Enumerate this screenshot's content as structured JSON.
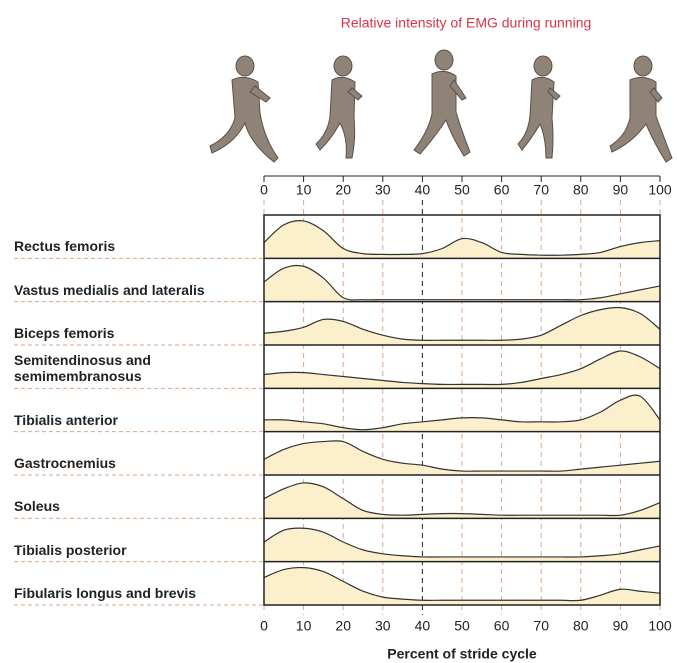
{
  "chart_data": {
    "type": "area",
    "title": "Relative intensity of EMG during running",
    "xlabel": "Percent of stride cycle",
    "x": [
      0,
      5,
      10,
      15,
      20,
      25,
      30,
      35,
      40,
      45,
      50,
      55,
      60,
      65,
      70,
      75,
      80,
      85,
      90,
      95,
      100
    ],
    "xlim": [
      0,
      100
    ],
    "xticks": [
      0,
      10,
      20,
      30,
      40,
      50,
      60,
      70,
      80,
      90,
      100
    ],
    "ylim": [
      0,
      1
    ],
    "highlight_tick": 40,
    "fill": "#fcefcc",
    "line_color": "#333333",
    "grid_color": "#d9a98a",
    "series": [
      {
        "name": "Rectus femoris",
        "values": [
          0.4,
          0.85,
          0.95,
          0.7,
          0.25,
          0.12,
          0.1,
          0.1,
          0.12,
          0.25,
          0.5,
          0.4,
          0.15,
          0.1,
          0.08,
          0.08,
          0.1,
          0.15,
          0.3,
          0.4,
          0.45
        ]
      },
      {
        "name": "Vastus medialis and lateralis",
        "values": [
          0.5,
          0.85,
          0.9,
          0.6,
          0.1,
          0.05,
          0.05,
          0.05,
          0.05,
          0.05,
          0.05,
          0.05,
          0.05,
          0.05,
          0.05,
          0.05,
          0.05,
          0.1,
          0.2,
          0.3,
          0.4
        ]
      },
      {
        "name": "Biceps femoris",
        "values": [
          0.3,
          0.35,
          0.45,
          0.65,
          0.6,
          0.4,
          0.25,
          0.15,
          0.12,
          0.12,
          0.12,
          0.12,
          0.12,
          0.15,
          0.25,
          0.5,
          0.75,
          0.9,
          0.95,
          0.8,
          0.4
        ]
      },
      {
        "name": "Semitendinosus and semimembranosus",
        "values": [
          0.35,
          0.4,
          0.4,
          0.35,
          0.3,
          0.25,
          0.2,
          0.15,
          0.12,
          0.1,
          0.1,
          0.1,
          0.1,
          0.15,
          0.25,
          0.35,
          0.5,
          0.75,
          0.95,
          0.8,
          0.5
        ]
      },
      {
        "name": "Tibialis anterior",
        "values": [
          0.3,
          0.3,
          0.25,
          0.2,
          0.1,
          0.05,
          0.1,
          0.2,
          0.25,
          0.3,
          0.35,
          0.35,
          0.3,
          0.25,
          0.25,
          0.25,
          0.3,
          0.5,
          0.8,
          0.9,
          0.3
        ]
      },
      {
        "name": "Gastrocnemius",
        "values": [
          0.4,
          0.65,
          0.8,
          0.85,
          0.85,
          0.6,
          0.4,
          0.3,
          0.25,
          0.15,
          0.1,
          0.1,
          0.1,
          0.1,
          0.1,
          0.1,
          0.15,
          0.2,
          0.25,
          0.3,
          0.35
        ]
      },
      {
        "name": "Soleus",
        "values": [
          0.5,
          0.75,
          0.9,
          0.8,
          0.5,
          0.2,
          0.1,
          0.08,
          0.1,
          0.12,
          0.12,
          0.1,
          0.08,
          0.08,
          0.08,
          0.08,
          0.08,
          0.08,
          0.08,
          0.2,
          0.4
        ]
      },
      {
        "name": "Tibialis posterior",
        "values": [
          0.5,
          0.8,
          0.85,
          0.75,
          0.5,
          0.3,
          0.2,
          0.15,
          0.12,
          0.12,
          0.12,
          0.12,
          0.12,
          0.12,
          0.12,
          0.12,
          0.12,
          0.15,
          0.2,
          0.3,
          0.4
        ]
      },
      {
        "name": "Fibularis longus and brevis",
        "values": [
          0.7,
          0.9,
          0.95,
          0.85,
          0.6,
          0.35,
          0.2,
          0.15,
          0.12,
          0.12,
          0.12,
          0.12,
          0.12,
          0.12,
          0.12,
          0.12,
          0.12,
          0.25,
          0.4,
          0.35,
          0.3
        ]
      }
    ]
  }
}
